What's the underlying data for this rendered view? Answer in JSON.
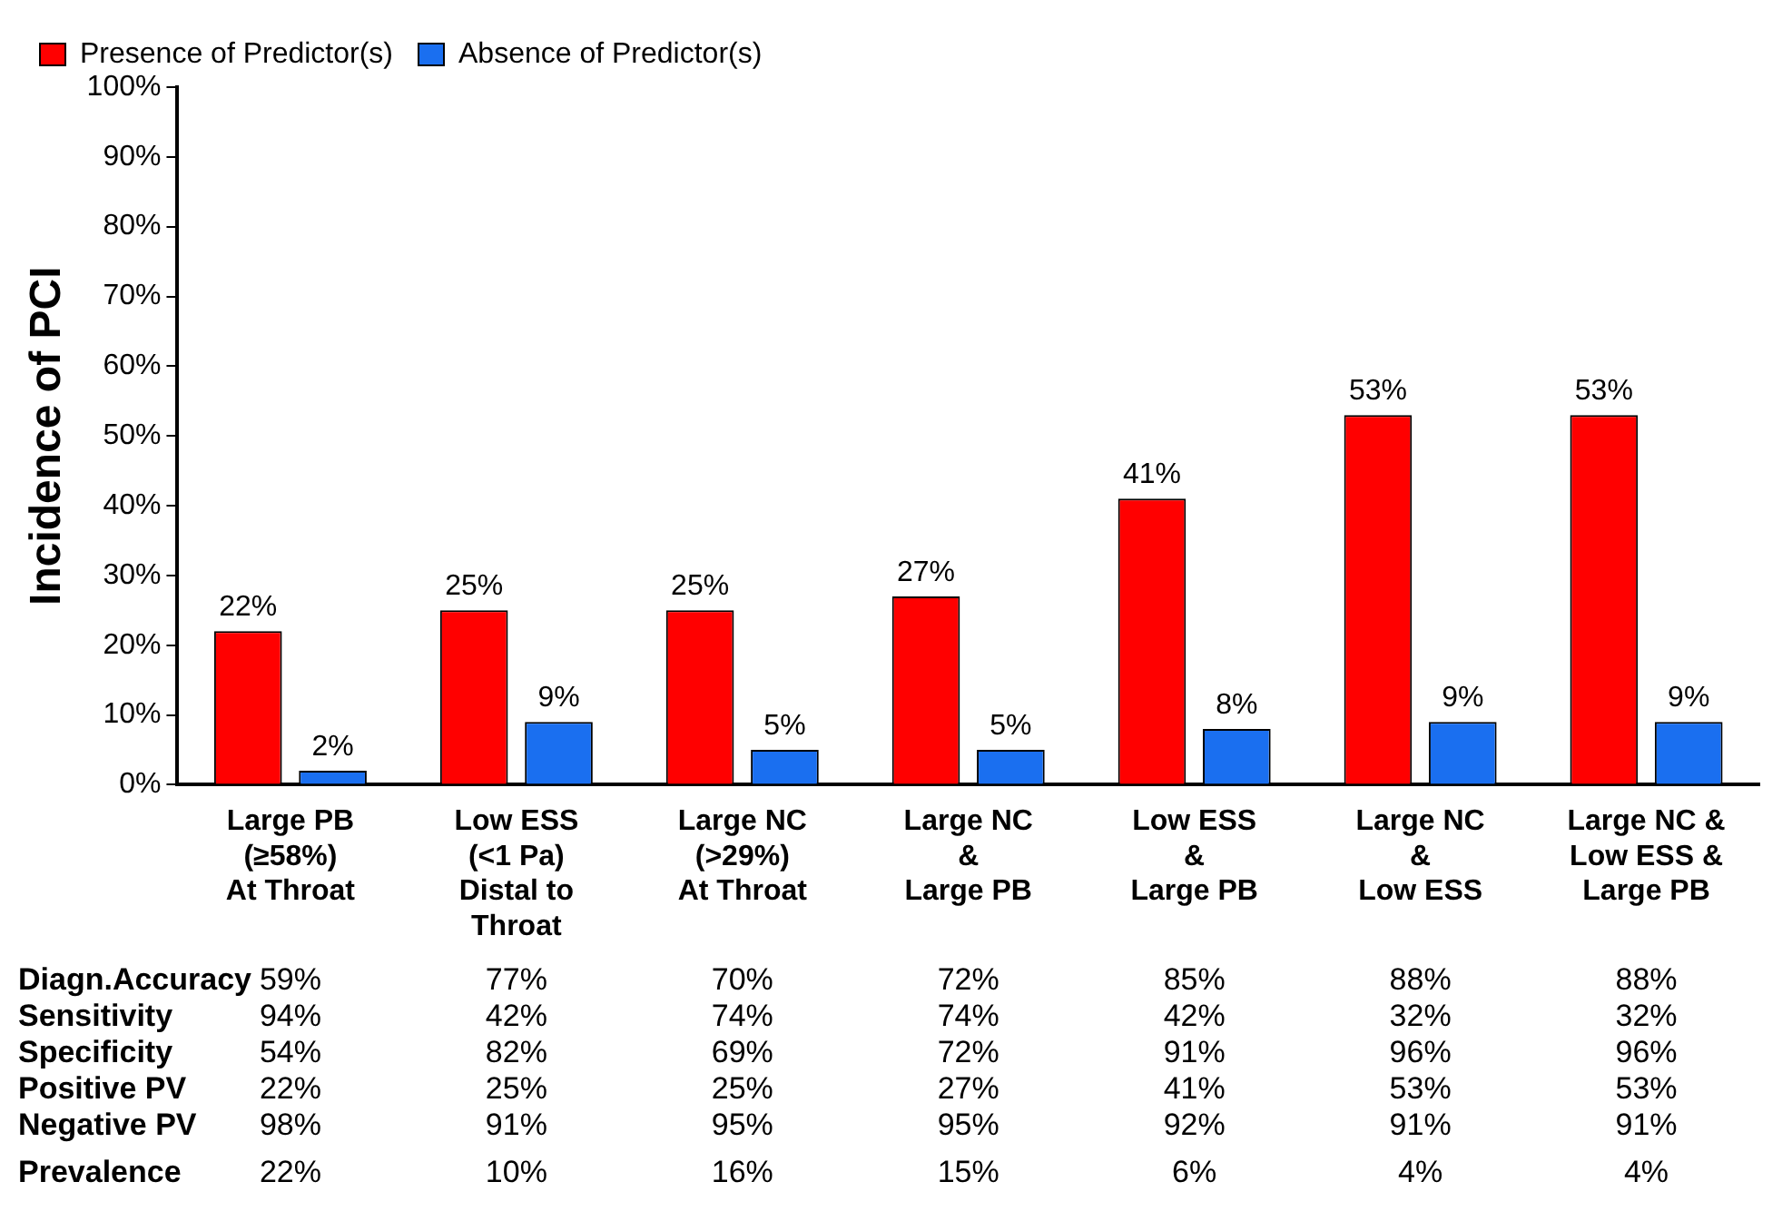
{
  "chart_data": {
    "type": "bar",
    "ylabel": "Incidence of PCI",
    "categories": [
      "Large PB\n(≥58%)\nAt Throat",
      "Low ESS\n(<1 Pa)\nDistal to\nThroat",
      "Large NC\n(>29%)\nAt Throat",
      "Large NC\n&\nLarge PB",
      "Low ESS\n&\nLarge PB",
      "Large NC\n&\nLow ESS",
      "Large NC &\nLow ESS &\nLarge PB"
    ],
    "series": [
      {
        "name": "Presence of Predictor(s)",
        "color": "#ff0000",
        "values": [
          22,
          25,
          25,
          27,
          41,
          53,
          53
        ],
        "value_labels": [
          "22%",
          "25%",
          "25%",
          "27%",
          "41%",
          "53%",
          "53%"
        ]
      },
      {
        "name": "Absence of Predictor(s)",
        "color": "#1a6ff0",
        "values": [
          2,
          9,
          5,
          5,
          8,
          9,
          9
        ],
        "value_labels": [
          "2%",
          "9%",
          "5%",
          "5%",
          "8%",
          "9%",
          "9%"
        ]
      }
    ],
    "ylim": [
      0,
      100
    ],
    "yticks": [
      {
        "value": 0,
        "label": "0%"
      },
      {
        "value": 10,
        "label": "10%"
      },
      {
        "value": 20,
        "label": "20%"
      },
      {
        "value": 30,
        "label": "30%"
      },
      {
        "value": 40,
        "label": "40%"
      },
      {
        "value": 50,
        "label": "50%"
      },
      {
        "value": 60,
        "label": "60%"
      },
      {
        "value": 70,
        "label": "70%"
      },
      {
        "value": 80,
        "label": "80%"
      },
      {
        "value": 90,
        "label": "90%"
      },
      {
        "value": 100,
        "label": "100%"
      }
    ],
    "legend": "top left",
    "annotations": [
      "Diagn.Accuracy",
      "59%",
      "77%",
      "70%",
      "72%",
      "85%",
      "88%",
      "88%",
      "Sensitivity",
      "94%",
      "42%",
      "74%",
      "74%",
      "42%",
      "32%",
      "32%",
      "Specificity",
      "54%",
      "82%",
      "69%",
      "72%",
      "91%",
      "96%",
      "96%",
      "Positive PV",
      "22%",
      "25%",
      "25%",
      "27%",
      "41%",
      "53%",
      "53%",
      "Negative PV",
      "98%",
      "91%",
      "95%",
      "95%",
      "92%",
      "91%",
      "91%",
      "Prevalence",
      "22%",
      "10%",
      "16%",
      "15%",
      "6%",
      "4%",
      "4%"
    ]
  }
}
